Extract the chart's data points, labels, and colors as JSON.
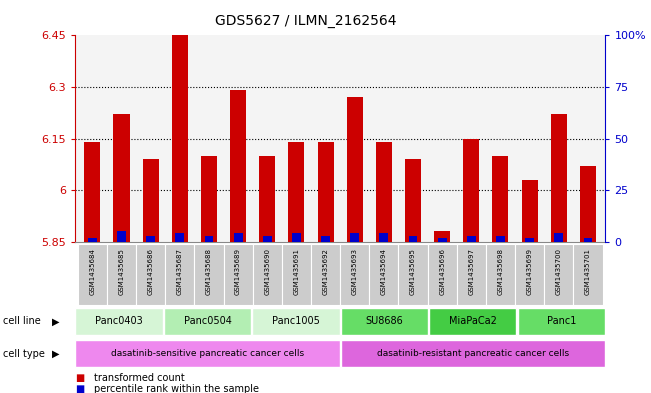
{
  "title": "GDS5627 / ILMN_2162564",
  "samples": [
    "GSM1435684",
    "GSM1435685",
    "GSM1435686",
    "GSM1435687",
    "GSM1435688",
    "GSM1435689",
    "GSM1435690",
    "GSM1435691",
    "GSM1435692",
    "GSM1435693",
    "GSM1435694",
    "GSM1435695",
    "GSM1435696",
    "GSM1435697",
    "GSM1435698",
    "GSM1435699",
    "GSM1435700",
    "GSM1435701"
  ],
  "transformed_count": [
    6.14,
    6.22,
    6.09,
    6.45,
    6.1,
    6.29,
    6.1,
    6.14,
    6.14,
    6.27,
    6.14,
    6.09,
    5.88,
    6.15,
    6.1,
    6.03,
    6.22,
    6.07
  ],
  "percentile_rank": [
    2,
    5,
    3,
    4,
    3,
    4,
    3,
    4,
    3,
    4,
    4,
    3,
    2,
    3,
    3,
    2,
    4,
    2
  ],
  "baseline": 5.85,
  "ylim_min": 5.85,
  "ylim_max": 6.45,
  "yticks": [
    5.85,
    6.0,
    6.15,
    6.3,
    6.45
  ],
  "ytick_labels": [
    "5.85",
    "6",
    "6.15",
    "6.3",
    "6.45"
  ],
  "right_ytick_percents": [
    0,
    25,
    50,
    75,
    100
  ],
  "right_ytick_labels": [
    "0",
    "25",
    "50",
    "75",
    "100%"
  ],
  "cell_lines": [
    {
      "name": "Panc0403",
      "start": 0,
      "end": 3,
      "color": "#d6f5d6"
    },
    {
      "name": "Panc0504",
      "start": 3,
      "end": 6,
      "color": "#b3eeb3"
    },
    {
      "name": "Panc1005",
      "start": 6,
      "end": 9,
      "color": "#d6f5d6"
    },
    {
      "name": "SU8686",
      "start": 9,
      "end": 12,
      "color": "#66dd66"
    },
    {
      "name": "MiaPaCa2",
      "start": 12,
      "end": 15,
      "color": "#44cc44"
    },
    {
      "name": "Panc1",
      "start": 15,
      "end": 18,
      "color": "#66dd66"
    }
  ],
  "cell_types": [
    {
      "name": "dasatinib-sensitive pancreatic cancer cells",
      "start": 0,
      "end": 9,
      "color": "#ee88ee"
    },
    {
      "name": "dasatinib-resistant pancreatic cancer cells",
      "start": 9,
      "end": 18,
      "color": "#dd66dd"
    }
  ],
  "bar_color": "#cc0000",
  "percentile_color": "#0000cc",
  "background_color": "#ffffff",
  "left_axis_color": "#cc0000",
  "right_axis_color": "#0000cc",
  "gsm_bg_color": "#cccccc"
}
